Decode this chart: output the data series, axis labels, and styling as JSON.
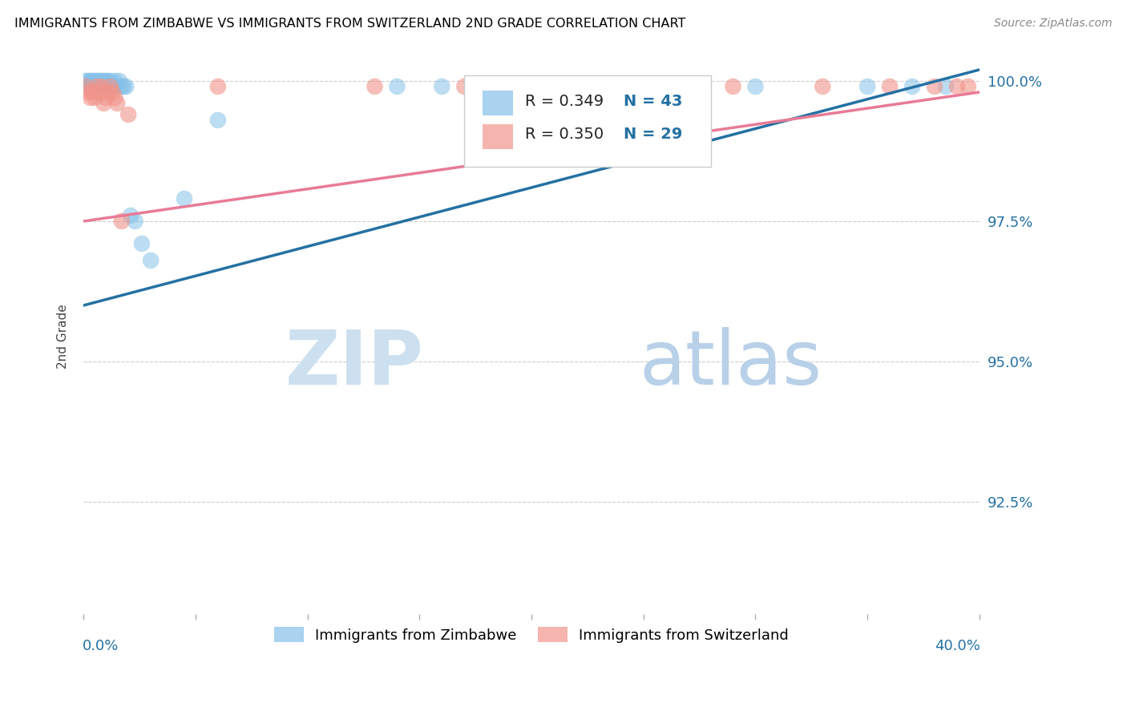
{
  "title": "IMMIGRANTS FROM ZIMBABWE VS IMMIGRANTS FROM SWITZERLAND 2ND GRADE CORRELATION CHART",
  "source": "Source: ZipAtlas.com",
  "ylabel": "2nd Grade",
  "legend_blue_label": "Immigrants from Zimbabwe",
  "legend_pink_label": "Immigrants from Switzerland",
  "R_blue": "R = 0.349",
  "N_blue": "N = 43",
  "R_pink": "R = 0.350",
  "N_pink": "N = 29",
  "blue_color": "#85c1e9",
  "pink_color": "#f1948a",
  "blue_line_color": "#2471a3",
  "pink_line_color": "#e87b96",
  "watermark_zip_color": "#c8dff0",
  "watermark_atlas_color": "#b8cfe0",
  "xlim": [
    0.0,
    0.4
  ],
  "ylim": [
    0.905,
    1.004
  ],
  "yticks": [
    1.0,
    0.975,
    0.95,
    0.925
  ],
  "ytick_labels": [
    "100.0%",
    "97.5%",
    "95.0%",
    "92.5%"
  ],
  "xticks": [
    0.0,
    0.05,
    0.1,
    0.15,
    0.2,
    0.25,
    0.3,
    0.35,
    0.4
  ],
  "blue_x": [
    0.001,
    0.002,
    0.002,
    0.003,
    0.003,
    0.004,
    0.004,
    0.005,
    0.005,
    0.006,
    0.006,
    0.007,
    0.007,
    0.008,
    0.008,
    0.009,
    0.009,
    0.01,
    0.01,
    0.011,
    0.011,
    0.012,
    0.013,
    0.014,
    0.015,
    0.016,
    0.017,
    0.018,
    0.019,
    0.021,
    0.023,
    0.026,
    0.03,
    0.045,
    0.06,
    0.14,
    0.16,
    0.2,
    0.25,
    0.3,
    0.35,
    0.37,
    0.385
  ],
  "blue_y": [
    1.0,
    1.0,
    0.999,
    1.0,
    0.999,
    1.0,
    0.999,
    1.0,
    0.999,
    1.0,
    0.999,
    1.0,
    0.999,
    1.0,
    0.999,
    1.0,
    0.999,
    1.0,
    0.999,
    1.0,
    0.999,
    1.0,
    0.999,
    1.0,
    0.999,
    1.0,
    0.999,
    0.999,
    0.999,
    0.976,
    0.975,
    0.971,
    0.968,
    0.979,
    0.993,
    0.999,
    0.999,
    0.999,
    0.999,
    0.999,
    0.999,
    0.999,
    0.999
  ],
  "pink_x": [
    0.001,
    0.002,
    0.003,
    0.004,
    0.005,
    0.006,
    0.007,
    0.008,
    0.009,
    0.01,
    0.011,
    0.012,
    0.013,
    0.014,
    0.015,
    0.017,
    0.02,
    0.06,
    0.13,
    0.17,
    0.2,
    0.23,
    0.26,
    0.29,
    0.33,
    0.36,
    0.38,
    0.39,
    0.395
  ],
  "pink_y": [
    0.999,
    0.998,
    0.997,
    0.998,
    0.997,
    0.999,
    0.998,
    0.999,
    0.996,
    0.997,
    0.998,
    0.999,
    0.998,
    0.997,
    0.996,
    0.975,
    0.994,
    0.999,
    0.999,
    0.999,
    0.999,
    0.999,
    0.999,
    0.999,
    0.999,
    0.999,
    0.999,
    0.999,
    0.999
  ],
  "blue_trend_x": [
    0.0,
    0.4
  ],
  "blue_trend_y": [
    0.96,
    1.002
  ],
  "pink_trend_x": [
    0.0,
    0.4
  ],
  "pink_trend_y": [
    0.975,
    0.998
  ]
}
